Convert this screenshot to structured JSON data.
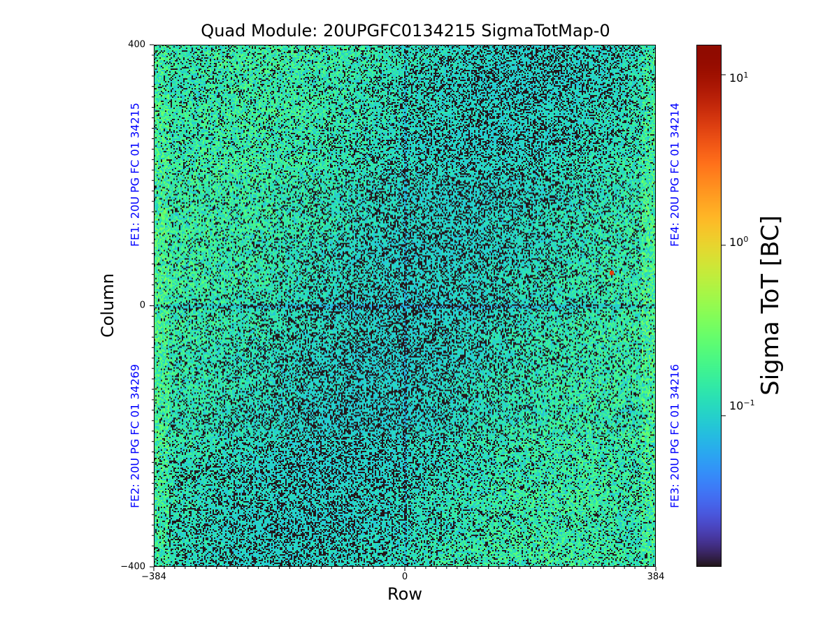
{
  "chart_data": {
    "type": "heatmap",
    "title": "Quad Module: 20UPGFC0134215 SigmaTotMap-0",
    "xlabel": "Row",
    "ylabel": "Column",
    "xlim": [
      -384,
      384
    ],
    "ylim": [
      -400,
      400
    ],
    "xticks": [
      "−384",
      "0",
      "384"
    ],
    "yticks": [
      "400",
      "0",
      "−400"
    ],
    "colorbar": {
      "label": "Sigma ToT [BC]",
      "scale": "log",
      "range": [
        0.013,
        15
      ],
      "colormap": "turbo",
      "ticks": [
        {
          "base": "10",
          "exp": "1",
          "value": 10
        },
        {
          "base": "10",
          "exp": "0",
          "value": 1
        },
        {
          "base": "10",
          "exp": "−1",
          "value": 0.1
        }
      ]
    },
    "front_ends": [
      {
        "label": "FE1: 20U PG FC 01 34215",
        "quadrant": "top-left"
      },
      {
        "label": "FE2: 20U PG FC 01 34269",
        "quadrant": "bottom-left"
      },
      {
        "label": "FE3: 20U PG FC 01 34216",
        "quadrant": "bottom-right"
      },
      {
        "label": "FE4: 20U PG FC 01 34214",
        "quadrant": "top-right"
      }
    ],
    "typical_sigma_range": [
      0.013,
      0.35
    ],
    "hot_pixel": {
      "row": 315,
      "column": 52,
      "value": 5.0
    }
  },
  "colors": {
    "fe_label": "#0000ff",
    "background": "#ffffff"
  }
}
